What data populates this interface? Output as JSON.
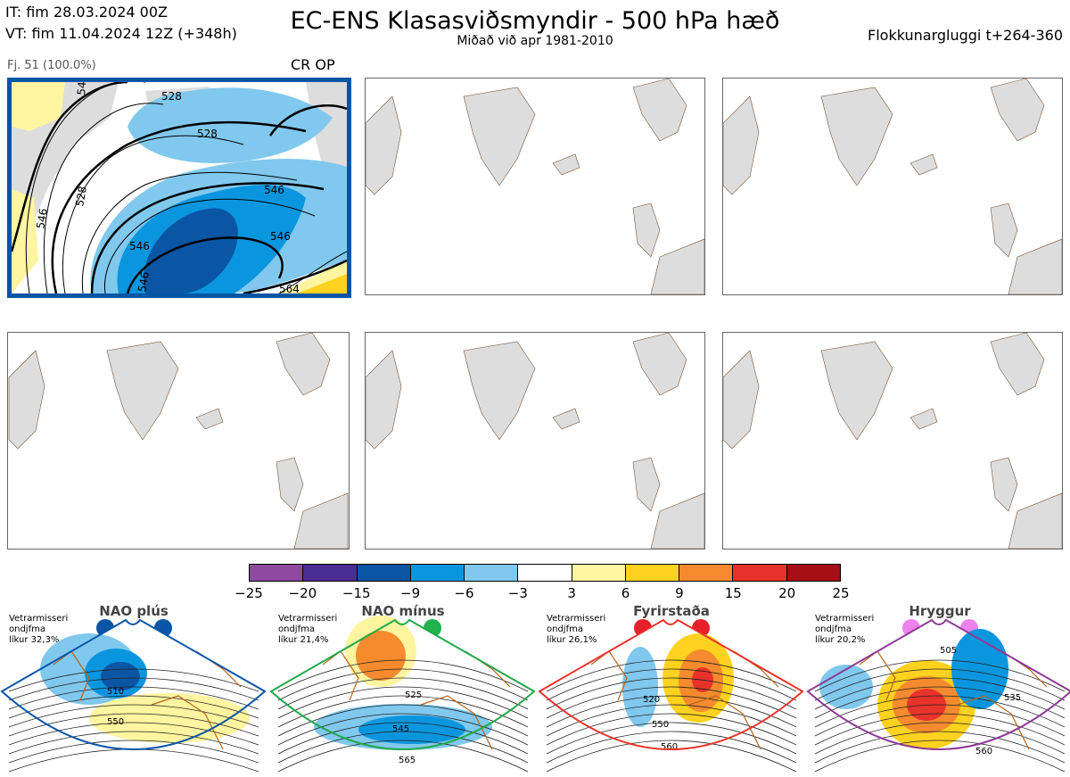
{
  "header": {
    "it": "IT: fim 28.03.2024 00Z",
    "vt": "VT: fim 11.04.2024 12Z  (+348h)",
    "title": "EC-ENS Klasasviðsmyndir - 500 hPa hæð",
    "subtitle": "Miðað við apr 1981-2010",
    "window": "Flokkunargluggi t+264-360"
  },
  "cluster": {
    "members": "Fj. 51 (100.0%)",
    "ops": "CR OP",
    "contour_labels": [
      "528",
      "528",
      "546",
      "546",
      "546",
      "528",
      "546",
      "564",
      "546",
      "546"
    ]
  },
  "colorbar": {
    "colors": [
      "#8e4aa0",
      "#4a2d95",
      "#0b55a5",
      "#0a96de",
      "#80c8ee",
      "#ffffff",
      "#fff4a0",
      "#ffd21f",
      "#f58b2e",
      "#e8332b",
      "#a50f15"
    ],
    "ticks": [
      "−25",
      "−20",
      "−15",
      "−9",
      "−6",
      "−3",
      "3",
      "6",
      "9",
      "15",
      "20",
      "25"
    ]
  },
  "regimes": [
    {
      "name": "NAO plús",
      "info": [
        "Vetrarmisseri",
        "ondjfma",
        "líkur 32,3%"
      ],
      "color": "#0a55a5",
      "dot_color": "#0a55a5",
      "labels": [
        "510",
        "550"
      ]
    },
    {
      "name": "NAO mínus",
      "info": [
        "Vetrarmisseri",
        "ondjfma",
        "líkur 21,4%"
      ],
      "color": "#22a84a",
      "dot_color": "#22b24c",
      "labels": [
        "525",
        "545",
        "565"
      ]
    },
    {
      "name": "Fyrirstaða",
      "info": [
        "Vetrarmisseri",
        "ondjfma",
        "líkur 26,1%"
      ],
      "color": "#e8332b",
      "dot_color": "#e8202a",
      "labels": [
        "520",
        "550",
        "560"
      ]
    },
    {
      "name": "Hryggur",
      "info": [
        "Vetrarmisseri",
        "ondjfma",
        "líkur 20,2%"
      ],
      "color": "#8e3a96",
      "dot_color": "#ee82ee",
      "labels": [
        "505",
        "535",
        "560"
      ]
    }
  ],
  "icons": {
    "panel_map": "map-icon",
    "regime_dot": "circle-icon"
  }
}
